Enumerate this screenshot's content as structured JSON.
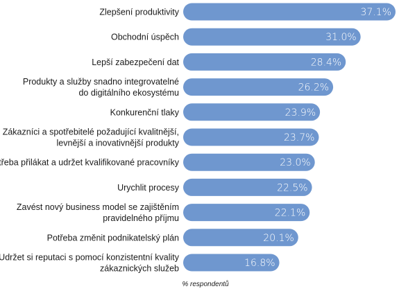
{
  "chart_data": {
    "type": "bar",
    "orientation": "horizontal",
    "categories": [
      [
        "Zlepšení produktivity"
      ],
      [
        "Obchodní úspěch"
      ],
      [
        "Lepší zabezpečení dat"
      ],
      [
        "Produkty a služby snadno integrovatelné",
        "do digitálního ekosystému"
      ],
      [
        "Konkurenční tlaky"
      ],
      [
        "Zákazníci a spotřebitelé požadující kvalitnější,",
        "levnější a inovativnější produkty"
      ],
      [
        "Potřeba přilákat a udržet kvalifikované pracovníky"
      ],
      [
        "Urychlit procesy"
      ],
      [
        "Zavést nový business model se zajištěním",
        "pravidelného příjmu"
      ],
      [
        "Potřeba změnit podnikatelský plán"
      ],
      [
        "Udržet si reputaci s pomocí konzistentní kvality",
        "zákaznických služeb"
      ]
    ],
    "values": [
      37.1,
      31.0,
      28.4,
      26.2,
      23.9,
      23.7,
      23.0,
      22.5,
      22.1,
      20.1,
      16.8
    ],
    "value_labels": [
      "37.1%",
      "31.0%",
      "28.4%",
      "26.2%",
      "23.9%",
      "23.7%",
      "23.0%",
      "22.5%",
      "22.1%",
      "20.1%",
      "16.8%"
    ],
    "xlabel": "% respondentů",
    "bar_color": "#6f97cf",
    "xlim": [
      0,
      37.1
    ],
    "grid": false,
    "legend": "none"
  }
}
